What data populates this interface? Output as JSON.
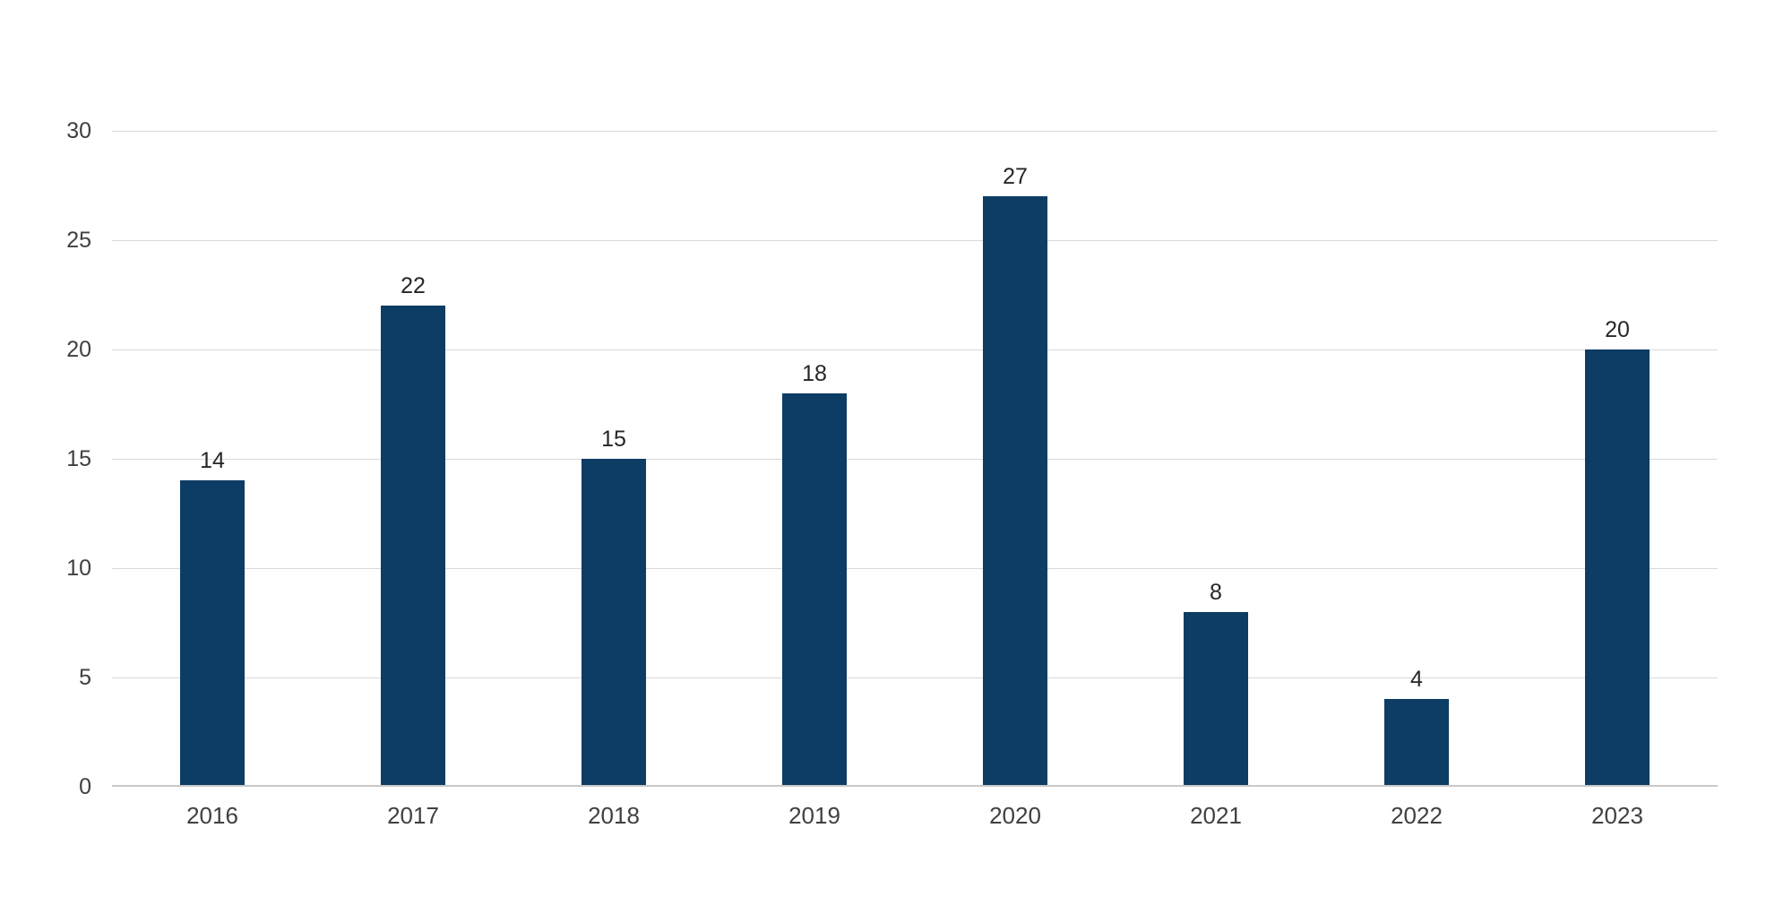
{
  "chart_data": {
    "type": "bar",
    "categories": [
      "2016",
      "2017",
      "2018",
      "2019",
      "2020",
      "2021",
      "2022",
      "2023"
    ],
    "values": [
      14,
      22,
      15,
      18,
      27,
      8,
      4,
      20
    ],
    "title": "",
    "xlabel": "",
    "ylabel": "",
    "ylim": [
      0,
      30
    ],
    "yticks": [
      0,
      5,
      10,
      15,
      20,
      25,
      30
    ],
    "grid": true,
    "legend": false,
    "value_labels_shown": true
  },
  "colors": {
    "bar": "#0d3c64",
    "gridline": "#d9d9d9",
    "axis_line": "#c9c9c9",
    "y_tick_label": "#404040",
    "x_tick_label": "#404040",
    "value_label": "#262626",
    "background": "#ffffff"
  }
}
